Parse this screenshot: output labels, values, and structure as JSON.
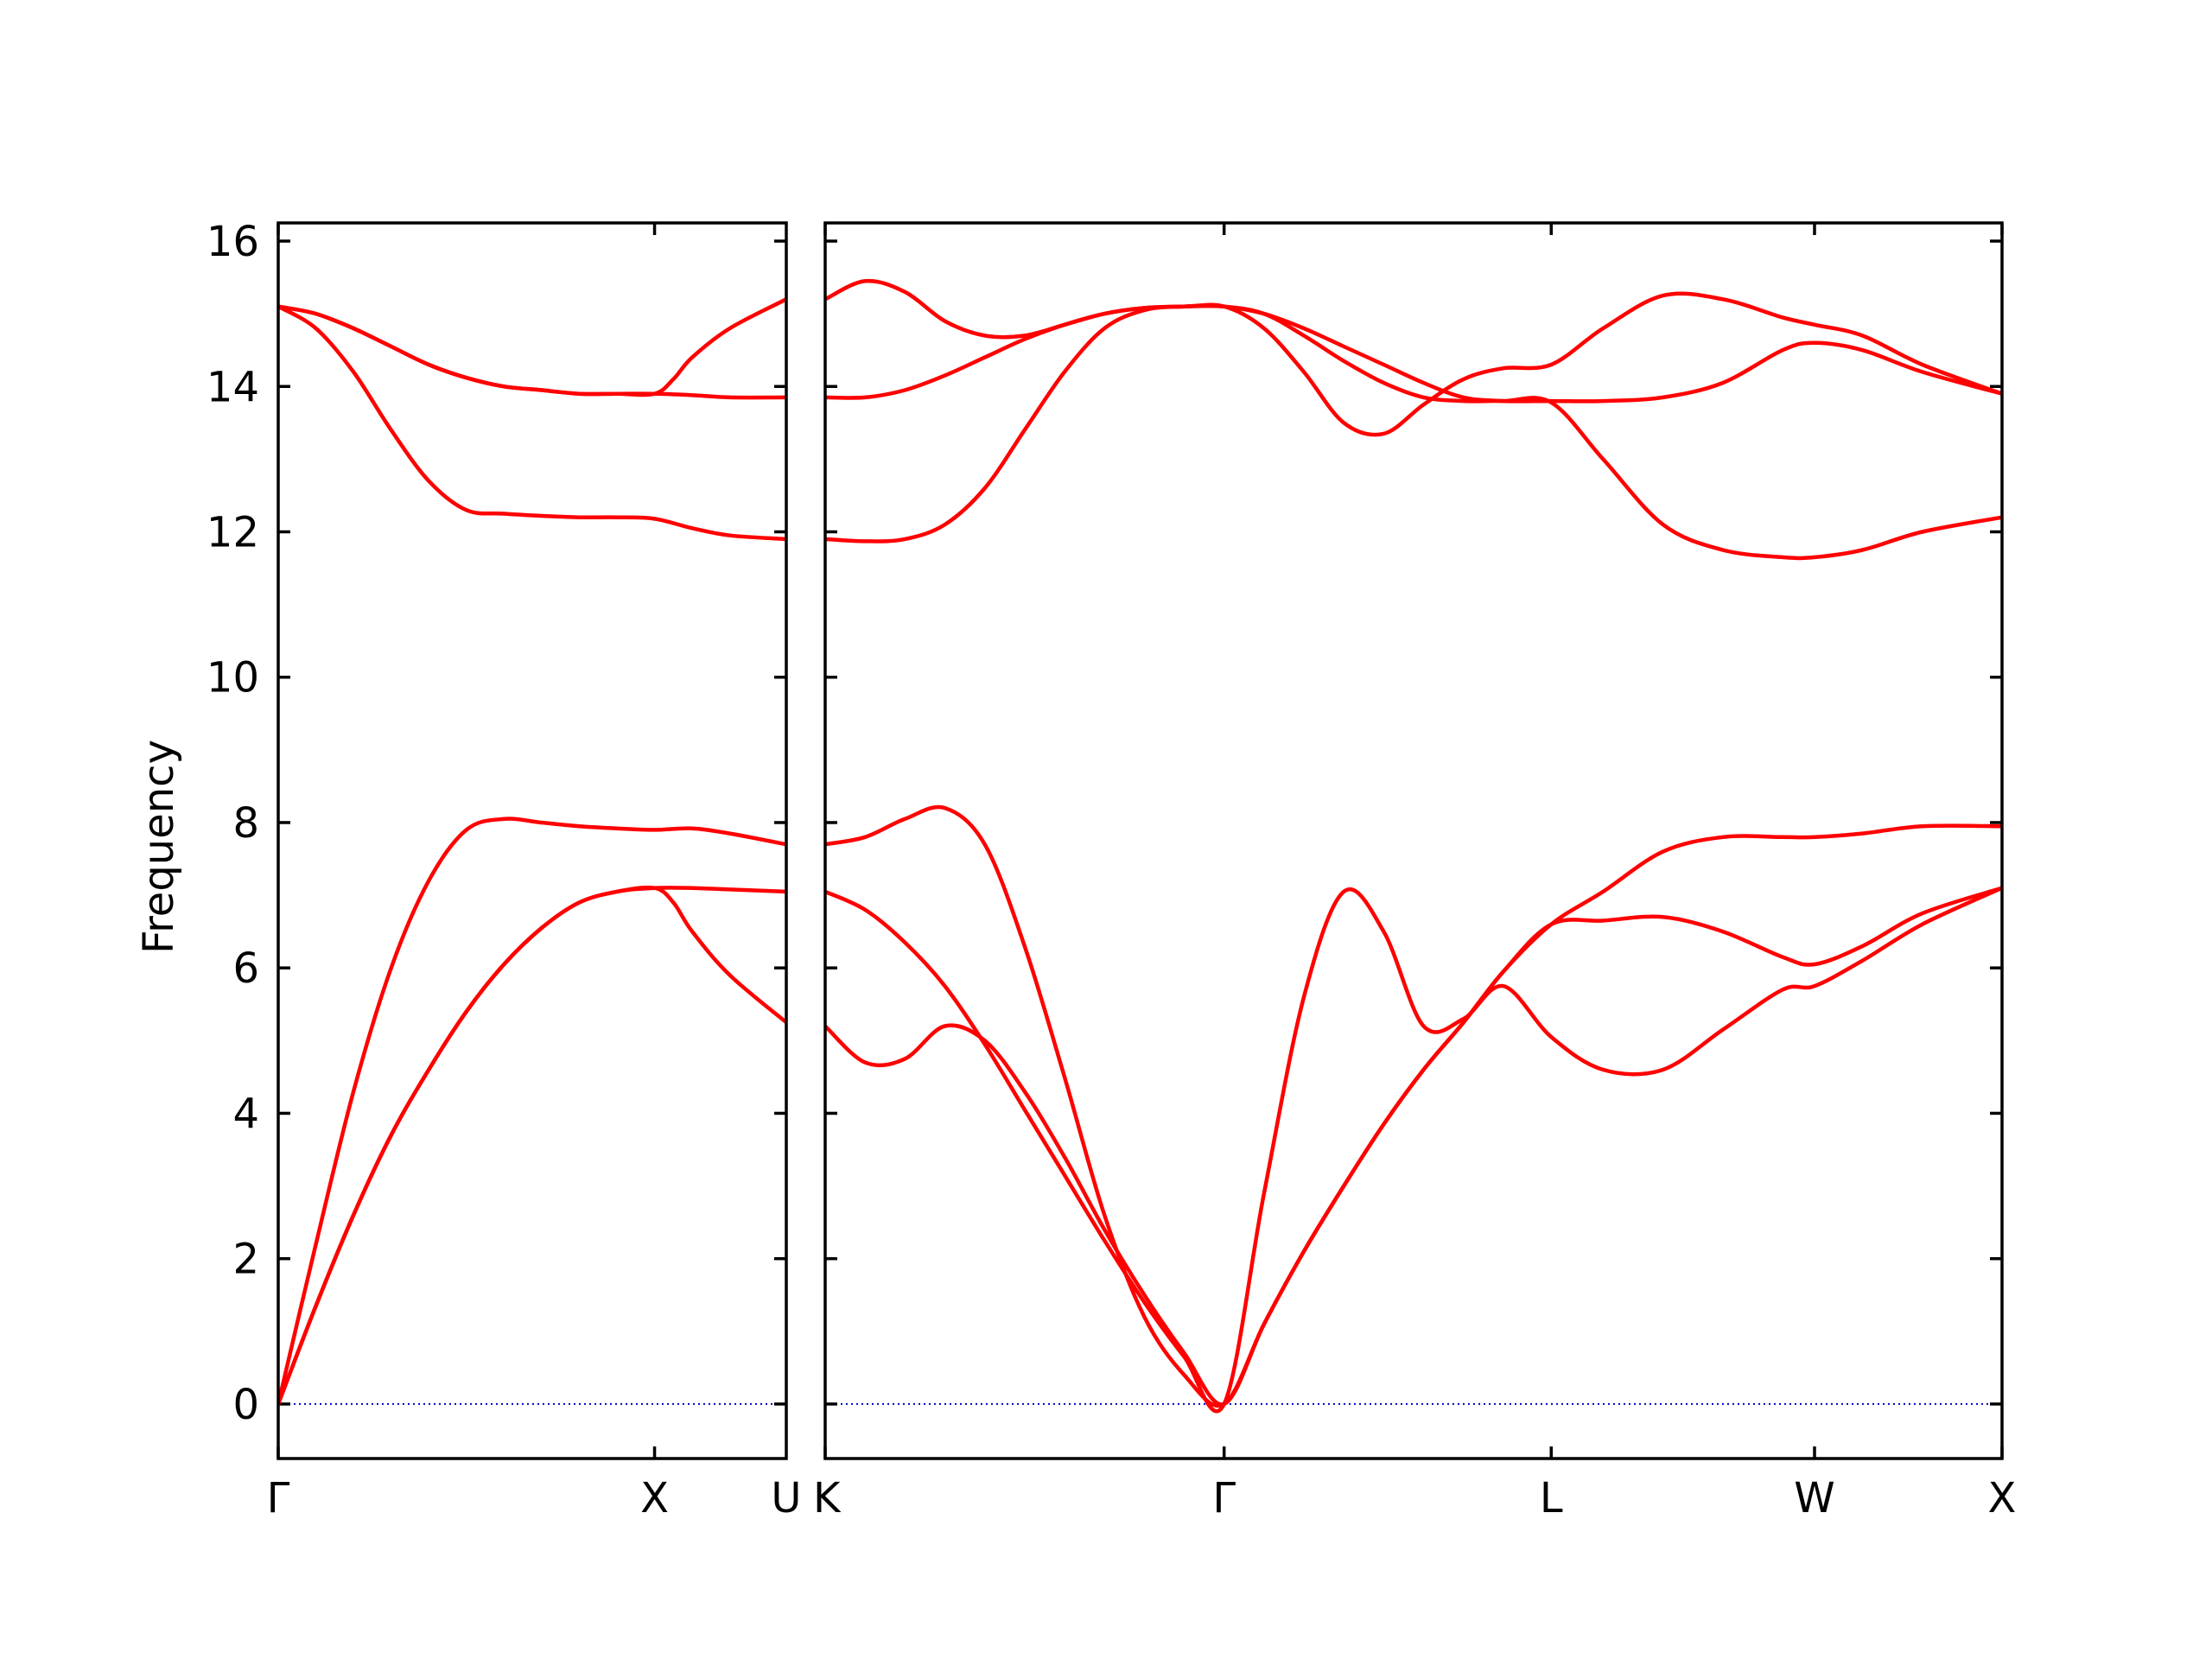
{
  "chart_data": {
    "type": "line",
    "ylabel": "Frequency",
    "ylim": [
      -0.75,
      16.25
    ],
    "yticks": [
      0,
      2,
      4,
      6,
      8,
      10,
      12,
      14,
      16
    ],
    "grid": false,
    "line_color": "#ff0000",
    "zero_line_color": "#0000cc",
    "panels": [
      {
        "xlim": [
          0,
          1.35
        ],
        "high_symmetry_points": [
          {
            "label": "Γ",
            "x": 0
          },
          {
            "label": "X",
            "x": 1.0
          }
        ],
        "right_edge_label": "U",
        "bands": [
          {
            "x": [
              0,
              0.1,
              0.2,
              0.3,
              0.4,
              0.5,
              0.6,
              0.7,
              0.8,
              0.9,
              1.0,
              1.1,
              1.2,
              1.35
            ],
            "y": [
              0,
              1.35,
              2.6,
              3.7,
              4.6,
              5.4,
              6.05,
              6.55,
              6.9,
              7.05,
              7.1,
              7.1,
              7.08,
              7.05
            ]
          },
          {
            "x": [
              0,
              0.1,
              0.2,
              0.3,
              0.4,
              0.5,
              0.6,
              0.7,
              0.8,
              0.9,
              1.0,
              1.1,
              1.2,
              1.35
            ],
            "y": [
              0,
              2.2,
              4.3,
              6.0,
              7.2,
              7.9,
              8.05,
              8.0,
              7.95,
              7.92,
              7.9,
              7.92,
              7.85,
              7.7
            ]
          },
          {
            "x": [
              0,
              0.1,
              0.2,
              0.3,
              0.4,
              0.5,
              0.6,
              0.7,
              0.8,
              0.9,
              1.0,
              1.05,
              1.1,
              1.2,
              1.35
            ],
            "y": [
              0,
              1.35,
              2.6,
              3.7,
              4.6,
              5.4,
              6.05,
              6.55,
              6.9,
              7.05,
              7.1,
              6.9,
              6.5,
              5.9,
              5.25
            ]
          },
          {
            "x": [
              0,
              0.1,
              0.2,
              0.3,
              0.4,
              0.5,
              0.6,
              0.7,
              0.8,
              0.9,
              1.0,
              1.1,
              1.2,
              1.35
            ],
            "y": [
              15.1,
              14.8,
              14.2,
              13.4,
              12.7,
              12.3,
              12.25,
              12.22,
              12.2,
              12.2,
              12.18,
              12.05,
              11.95,
              11.9
            ]
          },
          {
            "x": [
              0,
              0.1,
              0.2,
              0.3,
              0.4,
              0.5,
              0.6,
              0.7,
              0.8,
              0.9,
              1.0,
              1.1,
              1.2,
              1.35
            ],
            "y": [
              15.1,
              15.0,
              14.8,
              14.55,
              14.3,
              14.12,
              14.0,
              13.95,
              13.9,
              13.9,
              13.9,
              13.88,
              13.85,
              13.85
            ]
          },
          {
            "x": [
              0,
              0.1,
              0.2,
              0.3,
              0.4,
              0.5,
              0.6,
              0.7,
              0.8,
              0.9,
              1.0,
              1.05,
              1.1,
              1.2,
              1.35
            ],
            "y": [
              15.1,
              15.0,
              14.8,
              14.55,
              14.3,
              14.12,
              14.0,
              13.95,
              13.9,
              13.9,
              13.9,
              14.1,
              14.4,
              14.8,
              15.2
            ]
          }
        ]
      },
      {
        "xlim": [
          0,
          2.95
        ],
        "high_symmetry_points": [
          {
            "label": "K",
            "x": 0
          },
          {
            "label": "Γ",
            "x": 1.0
          },
          {
            "label": "L",
            "x": 1.82
          },
          {
            "label": "W",
            "x": 2.48
          },
          {
            "label": "X",
            "x": 2.95
          }
        ],
        "bands": [
          {
            "x": [
              0,
              0.1,
              0.2,
              0.3,
              0.4,
              0.5,
              0.6,
              0.7,
              0.8,
              0.9,
              1.0,
              1.1,
              1.2,
              1.3,
              1.4,
              1.5,
              1.6,
              1.7,
              1.82,
              1.95,
              2.1,
              2.25,
              2.4,
              2.48,
              2.6,
              2.75,
              2.95
            ],
            "y": [
              5.2,
              4.7,
              4.75,
              5.2,
              5.0,
              4.3,
              3.4,
              2.4,
              1.5,
              0.7,
              0,
              1.1,
              2.1,
              3.0,
              3.85,
              4.6,
              5.25,
              5.95,
              6.6,
              6.65,
              6.7,
              6.5,
              6.15,
              6.05,
              6.3,
              6.75,
              7.1
            ]
          },
          {
            "x": [
              0,
              0.1,
              0.2,
              0.3,
              0.4,
              0.5,
              0.6,
              0.7,
              0.8,
              0.9,
              1.0,
              1.1,
              1.2,
              1.3,
              1.4,
              1.5,
              1.6,
              1.7,
              1.82,
              1.95,
              2.1,
              2.25,
              2.4,
              2.48,
              2.6,
              2.75,
              2.95
            ],
            "y": [
              7.05,
              6.8,
              6.35,
              5.75,
              4.95,
              4.05,
              3.15,
              2.25,
              1.4,
              0.65,
              0,
              2.9,
              5.6,
              7.05,
              6.5,
              5.2,
              5.3,
              5.75,
              5.05,
              4.6,
              4.6,
              5.15,
              5.7,
              5.75,
              6.1,
              6.6,
              7.1
            ]
          },
          {
            "x": [
              0,
              0.1,
              0.2,
              0.3,
              0.4,
              0.5,
              0.6,
              0.7,
              0.8,
              0.9,
              1.0,
              1.1,
              1.2,
              1.3,
              1.4,
              1.5,
              1.6,
              1.7,
              1.82,
              1.95,
              2.1,
              2.25,
              2.4,
              2.48,
              2.6,
              2.75,
              2.95
            ],
            "y": [
              7.7,
              7.8,
              8.05,
              8.2,
              7.7,
              6.3,
              4.5,
              2.6,
              1.2,
              0.4,
              0,
              1.1,
              2.1,
              3.0,
              3.85,
              4.6,
              5.25,
              5.95,
              6.6,
              7.05,
              7.6,
              7.8,
              7.8,
              7.8,
              7.85,
              7.95,
              7.95
            ]
          },
          {
            "x": [
              0,
              0.1,
              0.2,
              0.3,
              0.4,
              0.5,
              0.6,
              0.7,
              0.8,
              0.9,
              1.0,
              1.1,
              1.2,
              1.3,
              1.4,
              1.5,
              1.6,
              1.7,
              1.82,
              1.95,
              2.1,
              2.25,
              2.4,
              2.48,
              2.6,
              2.75,
              2.95
            ],
            "y": [
              11.9,
              11.87,
              11.9,
              12.1,
              12.6,
              13.4,
              14.2,
              14.8,
              15.05,
              15.1,
              15.1,
              15.0,
              14.7,
              14.35,
              14.05,
              13.85,
              13.8,
              13.8,
              13.78,
              13.0,
              12.1,
              11.75,
              11.65,
              11.65,
              11.75,
              12.0,
              12.2
            ]
          },
          {
            "x": [
              0,
              0.1,
              0.2,
              0.3,
              0.4,
              0.5,
              0.6,
              0.7,
              0.8,
              0.9,
              1.0,
              1.1,
              1.2,
              1.3,
              1.4,
              1.5,
              1.6,
              1.7,
              1.82,
              1.95,
              2.1,
              2.25,
              2.4,
              2.48,
              2.6,
              2.75,
              2.95
            ],
            "y": [
              13.85,
              13.85,
              13.95,
              14.15,
              14.4,
              14.65,
              14.85,
              15.0,
              15.08,
              15.1,
              15.1,
              14.8,
              14.2,
              13.5,
              13.35,
              13.75,
              14.1,
              14.25,
              14.3,
              14.8,
              15.25,
              15.2,
              14.95,
              14.85,
              14.7,
              14.3,
              13.9
            ]
          },
          {
            "x": [
              0,
              0.1,
              0.2,
              0.3,
              0.4,
              0.5,
              0.6,
              0.7,
              0.8,
              0.9,
              1.0,
              1.1,
              1.2,
              1.3,
              1.4,
              1.5,
              1.6,
              1.7,
              1.82,
              1.95,
              2.1,
              2.25,
              2.4,
              2.48,
              2.6,
              2.75,
              2.95
            ],
            "y": [
              15.2,
              15.45,
              15.3,
              14.9,
              14.7,
              14.7,
              14.85,
              15.0,
              15.08,
              15.1,
              15.1,
              15.0,
              14.8,
              14.55,
              14.3,
              14.05,
              13.85,
              13.8,
              13.8,
              13.8,
              13.85,
              14.05,
              14.5,
              14.6,
              14.5,
              14.2,
              13.9
            ]
          }
        ]
      }
    ]
  }
}
